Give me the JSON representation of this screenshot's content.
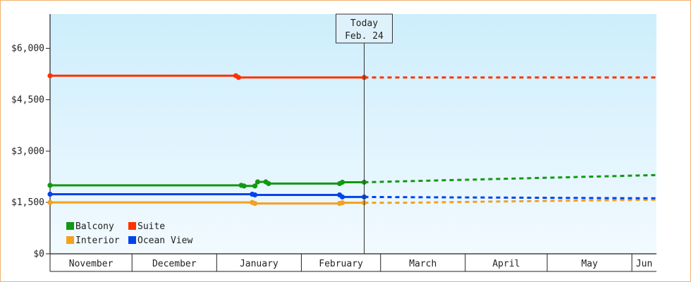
{
  "chart_data": {
    "type": "line",
    "y_ticks": [
      "$0",
      "$1,500",
      "$3,000",
      "$4,500",
      "$6,000"
    ],
    "ylim": [
      0,
      7000
    ],
    "x_months": [
      "November",
      "December",
      "January",
      "February",
      "March",
      "April",
      "May",
      "Jun"
    ],
    "xlim": [
      "2023-11-01",
      "2024-06-10"
    ],
    "today": {
      "label": "Today",
      "date_label": "Feb. 24",
      "date": "2024-02-24"
    },
    "grid": false,
    "legend_position": "bottom-left",
    "series": [
      {
        "name": "Balcony",
        "color": "#119911",
        "actual": [
          [
            "2023-11-01",
            2000
          ],
          [
            "2024-01-10",
            2000
          ],
          [
            "2024-01-11",
            1980
          ],
          [
            "2024-01-15",
            1980
          ],
          [
            "2024-01-16",
            2100
          ],
          [
            "2024-01-19",
            2100
          ],
          [
            "2024-01-20",
            2050
          ],
          [
            "2024-02-15",
            2050
          ],
          [
            "2024-02-16",
            2090
          ],
          [
            "2024-02-24",
            2090
          ]
        ],
        "markers": [
          "2023-11-01",
          "2024-01-10",
          "2024-01-11",
          "2024-01-15",
          "2024-01-16",
          "2024-01-19",
          "2024-01-20",
          "2024-02-15",
          "2024-02-16",
          "2024-02-24"
        ],
        "forecast": [
          [
            "2024-02-24",
            2090
          ],
          [
            "2024-06-10",
            2300
          ]
        ]
      },
      {
        "name": "Suite",
        "color": "#ff3300",
        "actual": [
          [
            "2023-11-01",
            5200
          ],
          [
            "2024-01-08",
            5200
          ],
          [
            "2024-01-09",
            5150
          ],
          [
            "2024-02-24",
            5150
          ]
        ],
        "markers": [
          "2023-11-01",
          "2024-01-08",
          "2024-01-09",
          "2024-02-24"
        ],
        "forecast": [
          [
            "2024-02-24",
            5150
          ],
          [
            "2024-06-10",
            5150
          ]
        ]
      },
      {
        "name": "Interior",
        "color": "#f5a020",
        "actual": [
          [
            "2023-11-01",
            1500
          ],
          [
            "2024-01-14",
            1500
          ],
          [
            "2024-01-15",
            1470
          ],
          [
            "2024-02-15",
            1470
          ],
          [
            "2024-02-16",
            1490
          ],
          [
            "2024-02-24",
            1490
          ]
        ],
        "markers": [
          "2023-11-01",
          "2024-01-14",
          "2024-01-15",
          "2024-02-15",
          "2024-02-16",
          "2024-02-24"
        ],
        "forecast": [
          [
            "2024-02-24",
            1490
          ],
          [
            "2024-03-10",
            1490
          ],
          [
            "2024-04-15",
            1530
          ],
          [
            "2024-06-10",
            1580
          ]
        ]
      },
      {
        "name": "Ocean View",
        "color": "#0044ee",
        "actual": [
          [
            "2023-11-01",
            1740
          ],
          [
            "2024-01-14",
            1740
          ],
          [
            "2024-01-15",
            1720
          ],
          [
            "2024-02-15",
            1720
          ],
          [
            "2024-02-16",
            1660
          ],
          [
            "2024-02-24",
            1660
          ]
        ],
        "markers": [
          "2023-11-01",
          "2024-01-14",
          "2024-01-15",
          "2024-02-15",
          "2024-02-16",
          "2024-02-24"
        ],
        "forecast": [
          [
            "2024-02-24",
            1660
          ],
          [
            "2024-06-10",
            1620
          ]
        ]
      }
    ],
    "legend_order": [
      "Balcony",
      "Suite",
      "Interior",
      "Ocean View"
    ]
  }
}
